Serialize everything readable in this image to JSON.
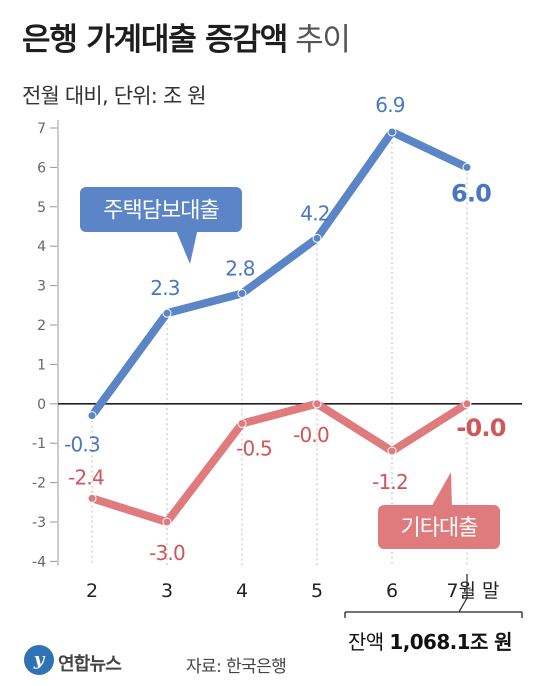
{
  "header": {
    "title_main": "은행 가계대출 증감액",
    "title_light": "추이",
    "subtitle": "전월 대비, 단위: 조 원"
  },
  "chart_data": {
    "type": "line",
    "categories": [
      "2",
      "3",
      "4",
      "5",
      "6",
      "7월 말"
    ],
    "ylim": [
      -4,
      7
    ],
    "yticks": [
      7,
      6,
      5,
      4,
      3,
      2,
      1,
      0,
      -1,
      -2,
      -3,
      -4
    ],
    "grid": false,
    "series": [
      {
        "name": "주택담보대출",
        "values": [
          -0.3,
          2.3,
          2.8,
          4.2,
          6.9,
          6.0
        ],
        "labels": [
          "-0.3",
          "2.3",
          "2.8",
          "4.2",
          "6.9",
          "6.0"
        ],
        "color": "#5b85c6",
        "label_color": "#4a78c0"
      },
      {
        "name": "기타대출",
        "values": [
          -2.4,
          -3.0,
          -0.5,
          -0.0,
          -1.2,
          -0.0
        ],
        "labels": [
          "-2.4",
          "-3.0",
          "-0.5",
          "-0.0",
          "-1.2",
          "-0.0"
        ],
        "color": "#e07b7d",
        "label_color": "#d0565a"
      }
    ]
  },
  "balance": {
    "prefix": "잔액",
    "amount": "1,068.1",
    "unit": "조 원"
  },
  "footer": {
    "logo_mark": "y",
    "logo_text": "연합뉴스",
    "source": "자료: 한국은행"
  }
}
